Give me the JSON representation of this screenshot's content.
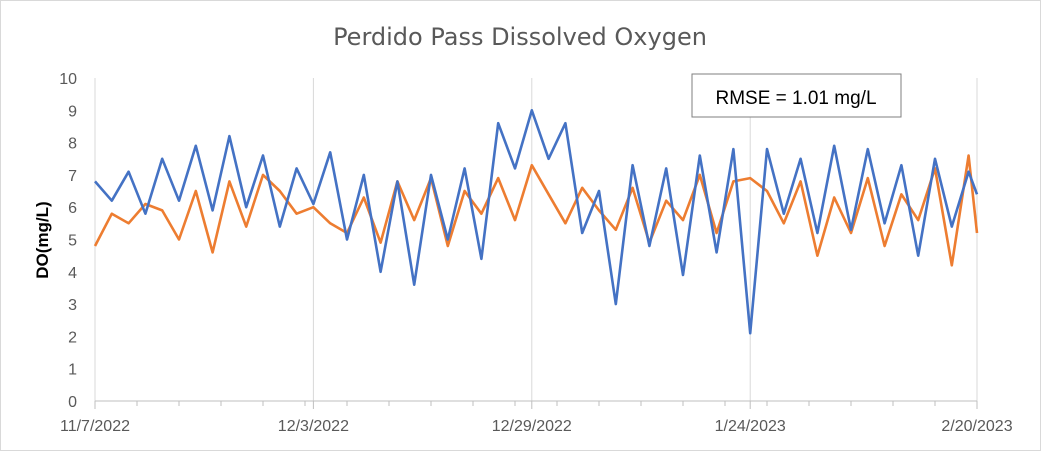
{
  "chart_data": {
    "type": "line",
    "title": "Perdido Pass Dissolved Oxygen",
    "xlabel": "",
    "ylabel": "DO(mg/L)",
    "ylim": [
      0,
      10
    ],
    "yticks": [
      0,
      1,
      2,
      3,
      4,
      5,
      6,
      7,
      8,
      9,
      10
    ],
    "xlim": [
      "2022-11-07",
      "2023-02-20"
    ],
    "xticks": [
      "2022-11-07",
      "2022-12-03",
      "2022-12-29",
      "2023-01-24",
      "2023-02-20"
    ],
    "xtick_labels": [
      "11/7/2022",
      "12/3/2022",
      "12/29/2022",
      "1/24/2023",
      "2/20/2023"
    ],
    "grid": "vertical",
    "legend": "none",
    "annotation": "RMSE = 1.01 mg/L",
    "series": [
      {
        "color": "#ED7D31",
        "x": [
          "2022-11-07",
          "2022-11-09",
          "2022-11-11",
          "2022-11-13",
          "2022-11-15",
          "2022-11-17",
          "2022-11-19",
          "2022-11-21",
          "2022-11-23",
          "2022-11-25",
          "2022-11-27",
          "2022-11-29",
          "2022-12-01",
          "2022-12-03",
          "2022-12-05",
          "2022-12-07",
          "2022-12-09",
          "2022-12-11",
          "2022-12-13",
          "2022-12-15",
          "2022-12-17",
          "2022-12-19",
          "2022-12-21",
          "2022-12-23",
          "2022-12-25",
          "2022-12-27",
          "2022-12-29",
          "2022-12-31",
          "2023-01-02",
          "2023-01-04",
          "2023-01-06",
          "2023-01-08",
          "2023-01-10",
          "2023-01-12",
          "2023-01-14",
          "2023-01-16",
          "2023-01-18",
          "2023-01-20",
          "2023-01-22",
          "2023-01-24",
          "2023-01-26",
          "2023-01-28",
          "2023-01-30",
          "2023-02-01",
          "2023-02-03",
          "2023-02-05",
          "2023-02-07",
          "2023-02-09",
          "2023-02-11",
          "2023-02-13",
          "2023-02-15",
          "2023-02-17",
          "2023-02-19",
          "2023-02-20"
        ],
        "y": [
          4.8,
          5.8,
          5.5,
          6.1,
          5.9,
          5.0,
          6.5,
          4.6,
          6.8,
          5.4,
          7.0,
          6.5,
          5.8,
          6.0,
          5.5,
          5.2,
          6.3,
          4.9,
          6.8,
          5.6,
          6.9,
          4.8,
          6.5,
          5.8,
          6.9,
          5.6,
          7.3,
          6.4,
          5.5,
          6.6,
          5.9,
          5.3,
          6.6,
          4.9,
          6.2,
          5.6,
          7.0,
          5.2,
          6.8,
          6.9,
          6.5,
          5.5,
          6.8,
          4.5,
          6.3,
          5.2,
          6.9,
          4.8,
          6.4,
          5.6,
          7.2,
          4.2,
          7.6,
          5.2
        ]
      },
      {
        "color": "#4472C4",
        "x": [
          "2022-11-07",
          "2022-11-09",
          "2022-11-11",
          "2022-11-13",
          "2022-11-15",
          "2022-11-17",
          "2022-11-19",
          "2022-11-21",
          "2022-11-23",
          "2022-11-25",
          "2022-11-27",
          "2022-11-29",
          "2022-12-01",
          "2022-12-03",
          "2022-12-05",
          "2022-12-07",
          "2022-12-09",
          "2022-12-11",
          "2022-12-13",
          "2022-12-15",
          "2022-12-17",
          "2022-12-19",
          "2022-12-21",
          "2022-12-23",
          "2022-12-25",
          "2022-12-27",
          "2022-12-29",
          "2022-12-31",
          "2023-01-02",
          "2023-01-04",
          "2023-01-06",
          "2023-01-08",
          "2023-01-10",
          "2023-01-12",
          "2023-01-14",
          "2023-01-16",
          "2023-01-18",
          "2023-01-20",
          "2023-01-22",
          "2023-01-24",
          "2023-01-26",
          "2023-01-28",
          "2023-01-30",
          "2023-02-01",
          "2023-02-03",
          "2023-02-05",
          "2023-02-07",
          "2023-02-09",
          "2023-02-11",
          "2023-02-13",
          "2023-02-15",
          "2023-02-17",
          "2023-02-19",
          "2023-02-20"
        ],
        "y": [
          6.8,
          6.2,
          7.1,
          5.8,
          7.5,
          6.2,
          7.9,
          5.9,
          8.2,
          6.0,
          7.6,
          5.4,
          7.2,
          6.1,
          7.7,
          5.0,
          7.0,
          4.0,
          6.8,
          3.6,
          7.0,
          5.0,
          7.2,
          4.4,
          8.6,
          7.2,
          9.0,
          7.5,
          8.6,
          5.2,
          6.5,
          3.0,
          7.3,
          4.8,
          7.2,
          3.9,
          7.6,
          4.6,
          7.8,
          2.1,
          7.8,
          5.8,
          7.5,
          5.2,
          7.9,
          5.3,
          7.8,
          5.5,
          7.3,
          4.5,
          7.5,
          5.4,
          7.1,
          6.4
        ]
      }
    ]
  }
}
